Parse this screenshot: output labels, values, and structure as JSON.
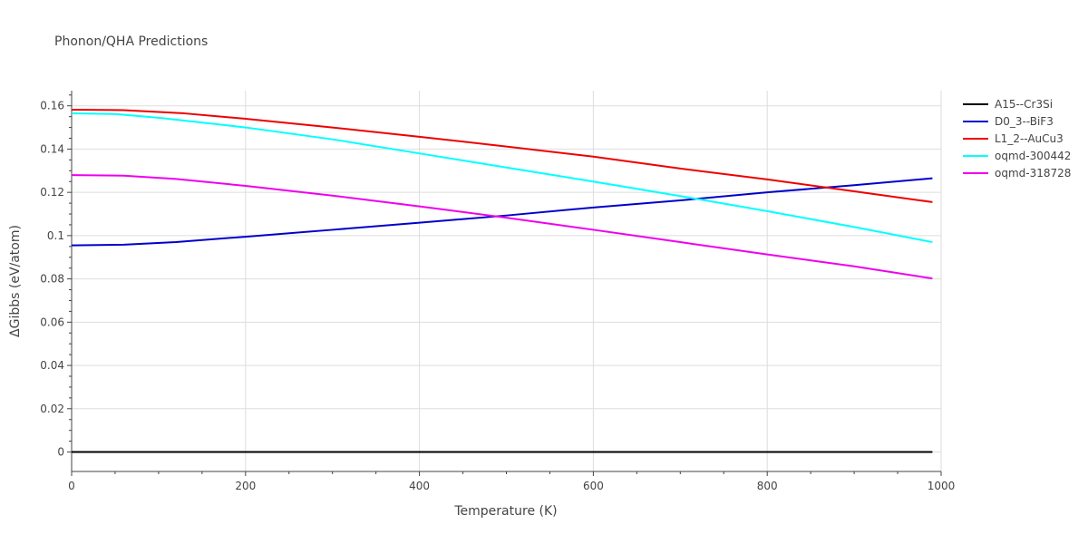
{
  "chart_data": {
    "type": "line",
    "title": "Phonon/QHA Predictions",
    "xlabel": "Temperature (K)",
    "ylabel": "ΔGibbs (eV/atom)",
    "xlim": [
      0,
      1000
    ],
    "ylim": [
      -0.009,
      0.167
    ],
    "x_ticks": [
      0,
      200,
      400,
      600,
      800,
      1000
    ],
    "x_tick_labels": [
      "0",
      "200",
      "400",
      "600",
      "800",
      "1000"
    ],
    "y_ticks": [
      0,
      0.02,
      0.04,
      0.06,
      0.08,
      0.1,
      0.12,
      0.14,
      0.16
    ],
    "y_tick_labels": [
      "0",
      "0.02",
      "0.04",
      "0.06",
      "0.08",
      "0.1",
      "0.12",
      "0.14",
      "0.16"
    ],
    "grid": true,
    "legend_position": "top-right",
    "series": [
      {
        "name": "A15--Cr3Si",
        "color": "#000000",
        "x": [
          0,
          100,
          200,
          300,
          400,
          500,
          600,
          700,
          800,
          900,
          990
        ],
        "y": [
          0,
          0,
          0,
          0,
          0,
          0,
          0,
          0,
          0,
          0,
          0
        ]
      },
      {
        "name": "D0_3--BiF3",
        "color": "#0000cc",
        "x": [
          0,
          60,
          120,
          200,
          300,
          400,
          500,
          600,
          700,
          800,
          900,
          990
        ],
        "y": [
          0.0955,
          0.0958,
          0.097,
          0.0995,
          0.1027,
          0.106,
          0.1093,
          0.113,
          0.1163,
          0.12,
          0.1233,
          0.1265
        ]
      },
      {
        "name": "L1_2--AuCu3",
        "color": "#ee0000",
        "x": [
          0,
          60,
          130,
          200,
          300,
          400,
          500,
          600,
          700,
          800,
          900,
          990
        ],
        "y": [
          0.1582,
          0.158,
          0.1565,
          0.154,
          0.15,
          0.1457,
          0.1412,
          0.1365,
          0.131,
          0.126,
          0.1205,
          0.1155
        ]
      },
      {
        "name": "oqmd-300442",
        "color": "#00ffff",
        "x": [
          0,
          50,
          100,
          200,
          300,
          400,
          500,
          600,
          700,
          800,
          900,
          990
        ],
        "y": [
          0.1565,
          0.1562,
          0.1545,
          0.15,
          0.1445,
          0.138,
          0.1315,
          0.125,
          0.1183,
          0.1113,
          0.104,
          0.097
        ]
      },
      {
        "name": "oqmd-318728",
        "color": "#ee00ee",
        "x": [
          0,
          60,
          120,
          200,
          300,
          400,
          500,
          600,
          700,
          800,
          900,
          990
        ],
        "y": [
          0.128,
          0.1277,
          0.1262,
          0.123,
          0.1185,
          0.1135,
          0.1083,
          0.1027,
          0.097,
          0.0913,
          0.0858,
          0.0802
        ]
      }
    ]
  }
}
